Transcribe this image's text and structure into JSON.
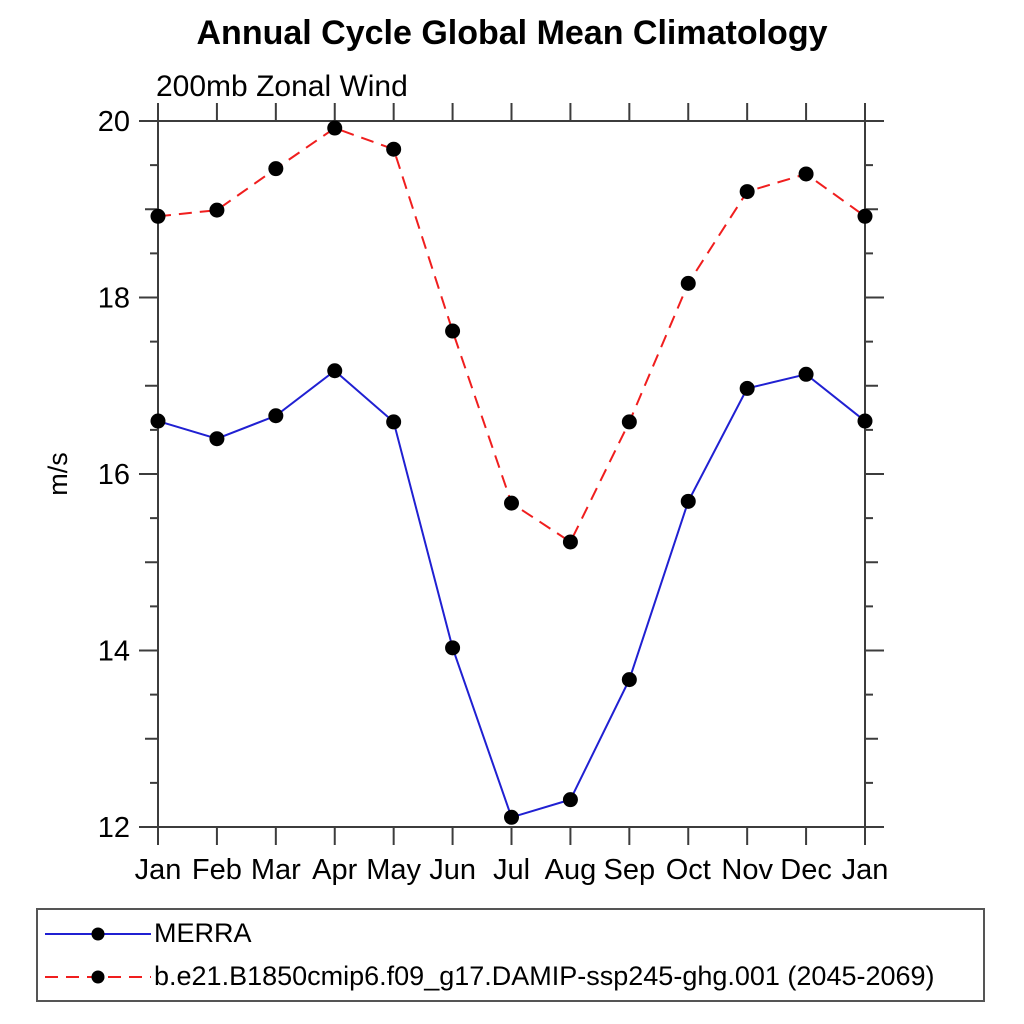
{
  "chart_data": {
    "type": "line",
    "title": "Annual Cycle Global Mean Climatology",
    "subtitle": "200mb Zonal Wind",
    "xlabel": "",
    "ylabel": "m/s",
    "ylim": [
      12,
      20
    ],
    "y_major_ticks": [
      12,
      14,
      16,
      18,
      20
    ],
    "y_minor_step": 0.5,
    "grid": false,
    "legend_position": "bottom-left-box",
    "axis_color": "#3c3c3c",
    "marker_color": "#000000",
    "categories": [
      "Jan",
      "Feb",
      "Mar",
      "Apr",
      "May",
      "Jun",
      "Jul",
      "Aug",
      "Sep",
      "Oct",
      "Nov",
      "Dec",
      "Jan"
    ],
    "series": [
      {
        "name": "MERRA",
        "color": "#2020d2",
        "style": "solid",
        "marker": "filled-circle",
        "values": [
          16.6,
          16.4,
          16.66,
          17.17,
          16.59,
          14.03,
          12.11,
          12.31,
          13.67,
          15.69,
          16.97,
          17.13,
          16.6
        ]
      },
      {
        "name": "b.e21.B1850cmip6.f09_g17.DAMIP-ssp245-ghg.001 (2045-2069)",
        "color": "#f01e1e",
        "style": "dashed",
        "marker": "filled-circle",
        "values": [
          18.92,
          18.99,
          19.46,
          19.92,
          19.68,
          17.62,
          15.67,
          15.23,
          16.59,
          18.16,
          19.2,
          19.4,
          18.92
        ]
      }
    ]
  }
}
